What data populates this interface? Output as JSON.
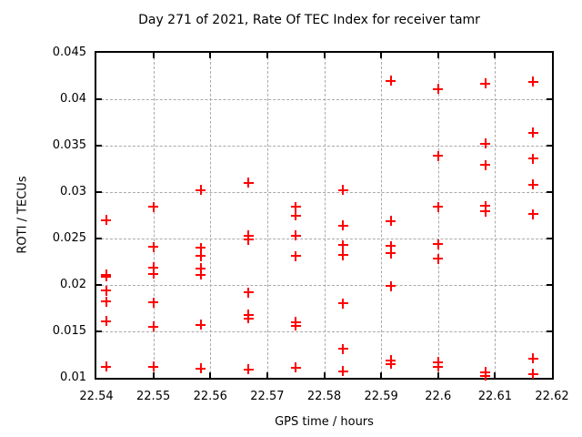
{
  "chart_data": {
    "type": "scatter",
    "title": "Day 271 of 2021, Rate Of TEC Index for receiver tamr",
    "xlabel": "GPS time / hours",
    "ylabel": "ROTI / TECUs",
    "xlim": [
      22.54,
      22.62
    ],
    "ylim": [
      0.01,
      0.045
    ],
    "xticks": [
      22.54,
      22.55,
      22.56,
      22.57,
      22.58,
      22.59,
      22.6,
      22.61,
      22.62
    ],
    "xtick_labels": [
      "22.54",
      "22.55",
      "22.56",
      "22.57",
      "22.58",
      "22.59",
      "22.6",
      "22.61",
      "22.62"
    ],
    "yticks": [
      0.01,
      0.015,
      0.02,
      0.025,
      0.03,
      0.035,
      0.04,
      0.045
    ],
    "ytick_labels": [
      "0.01",
      "0.015",
      "0.02",
      "0.025",
      "0.03",
      "0.035",
      "0.04",
      "0.045"
    ],
    "grid": true,
    "legend": "none",
    "background": "#ffffff",
    "series": [
      {
        "name": "ROTI",
        "marker": "plus",
        "color": "#ff0000",
        "points": [
          [
            22.5417,
            0.027
          ],
          [
            22.5417,
            0.0211
          ],
          [
            22.5417,
            0.0209
          ],
          [
            22.5417,
            0.0194
          ],
          [
            22.5417,
            0.0182
          ],
          [
            22.5417,
            0.0161
          ],
          [
            22.5417,
            0.0112
          ],
          [
            22.55,
            0.0284
          ],
          [
            22.55,
            0.0241
          ],
          [
            22.55,
            0.0219
          ],
          [
            22.55,
            0.0212
          ],
          [
            22.55,
            0.0181
          ],
          [
            22.55,
            0.0155
          ],
          [
            22.55,
            0.0112
          ],
          [
            22.5583,
            0.0302
          ],
          [
            22.5583,
            0.024
          ],
          [
            22.5583,
            0.0231
          ],
          [
            22.5583,
            0.0218
          ],
          [
            22.5583,
            0.0211
          ],
          [
            22.5583,
            0.0157
          ],
          [
            22.5583,
            0.011
          ],
          [
            22.5667,
            0.031
          ],
          [
            22.5667,
            0.0253
          ],
          [
            22.5667,
            0.0249
          ],
          [
            22.5667,
            0.0192
          ],
          [
            22.5667,
            0.0168
          ],
          [
            22.5667,
            0.0164
          ],
          [
            22.5667,
            0.0109
          ],
          [
            22.575,
            0.0284
          ],
          [
            22.575,
            0.0275
          ],
          [
            22.575,
            0.0253
          ],
          [
            22.575,
            0.0231
          ],
          [
            22.575,
            0.016
          ],
          [
            22.575,
            0.0156
          ],
          [
            22.575,
            0.0111
          ],
          [
            22.5833,
            0.0302
          ],
          [
            22.5833,
            0.0264
          ],
          [
            22.5833,
            0.0243
          ],
          [
            22.5833,
            0.0232
          ],
          [
            22.5833,
            0.018
          ],
          [
            22.5833,
            0.0131
          ],
          [
            22.5833,
            0.0107
          ],
          [
            22.5917,
            0.042
          ],
          [
            22.5917,
            0.0269
          ],
          [
            22.5917,
            0.0242
          ],
          [
            22.5917,
            0.0234
          ],
          [
            22.5917,
            0.0199
          ],
          [
            22.5917,
            0.0119
          ],
          [
            22.5917,
            0.0115
          ],
          [
            22.6,
            0.0411
          ],
          [
            22.6,
            0.0339
          ],
          [
            22.6,
            0.0284
          ],
          [
            22.6,
            0.0244
          ],
          [
            22.6,
            0.0228
          ],
          [
            22.6,
            0.0117
          ],
          [
            22.6,
            0.0112
          ],
          [
            22.6083,
            0.0417
          ],
          [
            22.6083,
            0.0352
          ],
          [
            22.6083,
            0.0329
          ],
          [
            22.6083,
            0.0285
          ],
          [
            22.6083,
            0.0279
          ],
          [
            22.6083,
            0.0106
          ],
          [
            22.6083,
            0.0102
          ],
          [
            22.6167,
            0.0419
          ],
          [
            22.6167,
            0.0364
          ],
          [
            22.6167,
            0.0336
          ],
          [
            22.6167,
            0.0308
          ],
          [
            22.6167,
            0.0276
          ],
          [
            22.6167,
            0.0121
          ],
          [
            22.6167,
            0.0104
          ]
        ]
      }
    ]
  }
}
